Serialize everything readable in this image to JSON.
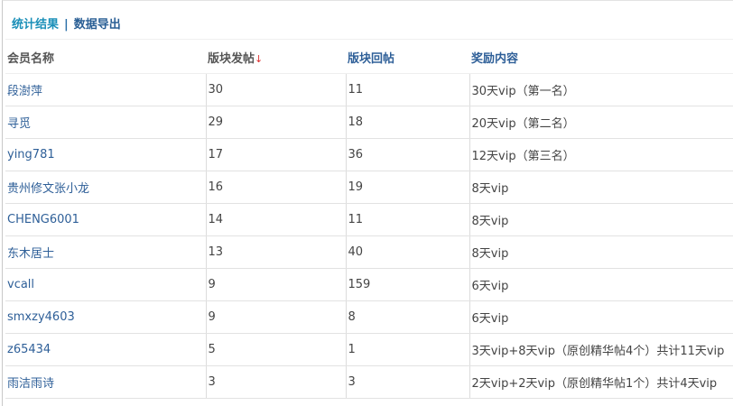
{
  "tabs": {
    "stats": "统计结果",
    "separator": "|",
    "export": "数据导出"
  },
  "table": {
    "headers": [
      "会员名称",
      "版块发帖",
      "版块回帖",
      "奖励内容"
    ],
    "sort_indicator": "↓",
    "rows": [
      [
        "段澍萍",
        "30",
        "11",
        "30天vip（第一名）"
      ],
      [
        "寻觅",
        "29",
        "18",
        "20天vip（第二名）"
      ],
      [
        "ying781",
        "17",
        "36",
        "12天vip（第三名）"
      ],
      [
        "贵州修文张小龙",
        "16",
        "19",
        "8天vip"
      ],
      [
        "CHENG6001",
        "14",
        "11",
        "8天vip"
      ],
      [
        "东木居士",
        "13",
        "40",
        "8天vip"
      ],
      [
        "vcall",
        "9",
        "159",
        "6天vip"
      ],
      [
        "smxzy4603",
        "9",
        "8",
        "6天vip"
      ],
      [
        "z65434",
        "5",
        "1",
        "3天vip+8天vip（原创精华帖4个）共计11天vip"
      ],
      [
        "雨洁雨诗",
        "3",
        "3",
        "2天vip+2天vip（原创精华帖1个）共计4天vip"
      ]
    ]
  },
  "colors": {
    "link": "#2e5f98",
    "tab_active": "#1a8fb8",
    "sort_arrow": "#dd3333"
  }
}
